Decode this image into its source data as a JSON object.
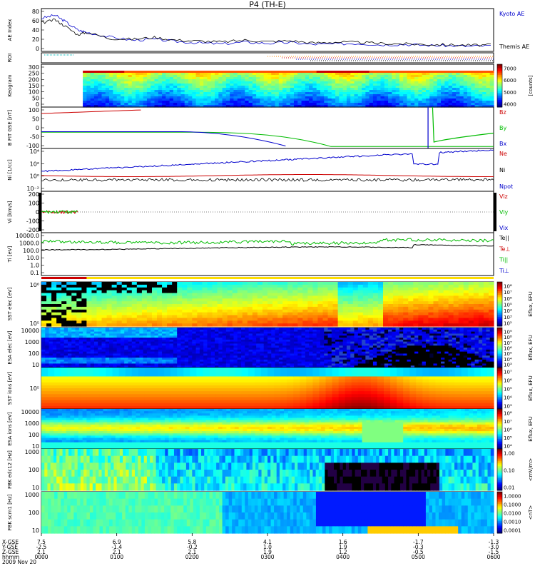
{
  "title": "P4 (TH-E)",
  "date_label": "2009 Nov 20",
  "colors": {
    "blue": "#0000cc",
    "red": "#cc0000",
    "green": "#00bb00",
    "black": "#000000",
    "cyan": "#00bbbb"
  },
  "chart_data": [
    {
      "type": "line",
      "panel": "ae",
      "ylabel": "AE Index",
      "y_ticks": [
        "80",
        "60",
        "40",
        "20",
        "0"
      ],
      "legend": [
        {
          "text": "Kyoto AE",
          "color": "#0000cc"
        },
        {
          "text": "Themis AE",
          "color": "#000000"
        }
      ],
      "series": [
        {
          "name": "Kyoto AE",
          "x": [
            0,
            0.03,
            0.05,
            0.08,
            0.1,
            0.15,
            0.2,
            0.25,
            0.3,
            0.35,
            0.4,
            0.45,
            0.5,
            0.55,
            0.6,
            0.65,
            0.7,
            0.75,
            0.8,
            0.85,
            0.9,
            0.95,
            1.0
          ],
          "values": [
            65,
            72,
            60,
            40,
            35,
            25,
            18,
            20,
            15,
            12,
            10,
            14,
            11,
            13,
            9,
            10,
            11,
            8,
            9,
            7,
            6,
            5,
            6
          ]
        },
        {
          "name": "Themis AE",
          "x": [
            0,
            0.03,
            0.05,
            0.08,
            0.1,
            0.15,
            0.2,
            0.25,
            0.3,
            0.35,
            0.4,
            0.45,
            0.5,
            0.55,
            0.6,
            0.65,
            0.7,
            0.75,
            0.8,
            0.85,
            0.9,
            0.95,
            1.0
          ],
          "values": [
            55,
            62,
            50,
            30,
            35,
            22,
            20,
            24,
            18,
            16,
            14,
            18,
            15,
            17,
            12,
            14,
            13,
            11,
            10,
            9,
            8,
            7,
            8
          ]
        }
      ]
    },
    {
      "type": "line",
      "panel": "roi",
      "ylabel": "ROI"
    },
    {
      "type": "heatmap",
      "panel": "keogram",
      "ylabel": "Keogram",
      "y_ticks": [
        "300",
        "250",
        "200",
        "150",
        "100",
        "50",
        "0"
      ],
      "colorbar_label": "[counts]",
      "colorbar_ticks": [
        "7000",
        "6000",
        "5000",
        "4000"
      ]
    },
    {
      "type": "line",
      "panel": "bfield",
      "ylabel": "B FIT GSE [nT]",
      "y_ticks": [
        "100",
        "50",
        "0",
        "-50",
        "-100"
      ],
      "legend": [
        {
          "text": "Bz",
          "color": "#cc0000"
        },
        {
          "text": "By",
          "color": "#00bb00"
        },
        {
          "text": "Bx",
          "color": "#0000cc"
        }
      ]
    },
    {
      "type": "line",
      "panel": "density",
      "ylabel": "Ni [1/cc]",
      "y_ticks": [
        "10⁴",
        "10²",
        "10⁰",
        "10⁻²"
      ],
      "legend": [
        {
          "text": "Ne",
          "color": "#cc0000"
        },
        {
          "text": "Ni",
          "color": "#000000"
        },
        {
          "text": "Npot",
          "color": "#0000cc"
        }
      ]
    },
    {
      "type": "line",
      "panel": "velocity",
      "ylabel": "Vi [km/s]",
      "y_ticks": [
        "200",
        "100",
        "0",
        "-100",
        "-200"
      ],
      "legend": [
        {
          "text": "Viz",
          "color": "#cc0000"
        },
        {
          "text": "Viy",
          "color": "#00bb00"
        },
        {
          "text": "Vix",
          "color": "#0000cc"
        }
      ]
    },
    {
      "type": "line",
      "panel": "temperature",
      "ylabel": "Ti [eV]",
      "y_ticks": [
        "10000.0",
        "1000.0",
        "100.0",
        "10.0",
        "1.0",
        "0.1"
      ],
      "legend": [
        {
          "text": "Te||",
          "color": "#000000"
        },
        {
          "text": "Te⊥",
          "color": "#cc0000"
        },
        {
          "text": "Ti||",
          "color": "#00bb00"
        },
        {
          "text": "Ti⊥",
          "color": "#0000cc"
        }
      ]
    },
    {
      "type": "heatmap",
      "panel": "sst_e",
      "ylabel": "SST elec [eV]",
      "y_ticks": [
        "10⁶",
        "10⁵"
      ],
      "colorbar_label": "Eflux, EFU",
      "colorbar_ticks": [
        "10⁸",
        "10⁷",
        "10⁶",
        "10⁵",
        "10⁴",
        "10³",
        "10²"
      ]
    },
    {
      "type": "heatmap",
      "panel": "esa_e",
      "ylabel": "ESA elec [eV]",
      "y_ticks": [
        "10000",
        "1000",
        "100",
        "10"
      ],
      "colorbar_label": "Eflux, EFU",
      "colorbar_ticks": [
        "10⁹",
        "10⁸",
        "10⁷",
        "10⁶",
        "10⁵",
        "10⁴",
        "10³"
      ]
    },
    {
      "type": "heatmap",
      "panel": "sst_i",
      "ylabel": "SST ions [eV]",
      "y_ticks": [
        "10⁵"
      ],
      "colorbar_label": "Eflux, EFU",
      "colorbar_ticks": [
        "10⁷",
        "10⁶",
        "10⁵",
        "10⁴",
        "10³"
      ]
    },
    {
      "type": "heatmap",
      "panel": "esa_i",
      "ylabel": "ESA ions [eV]",
      "y_ticks": [
        "10000",
        "1000",
        "100",
        "10"
      ],
      "colorbar_label": "Eflux, EFU",
      "colorbar_ticks": [
        "10⁸",
        "10⁷",
        "10⁶",
        "10⁵",
        "10⁴"
      ]
    },
    {
      "type": "heatmap",
      "panel": "fbk_e",
      "ylabel": "FBK edc12 [Hz]",
      "y_ticks": [
        "1000",
        "100",
        "10"
      ],
      "colorbar_label": "<mV/m>",
      "colorbar_ticks": [
        "1.00",
        "0.10",
        "0.01"
      ]
    },
    {
      "type": "heatmap",
      "panel": "fbk_b",
      "ylabel": "FBK scm1 [Hz]",
      "y_ticks": [
        "1000",
        "100",
        "10"
      ],
      "colorbar_label": "<nT>",
      "colorbar_ticks": [
        "1.0000",
        "0.1000",
        "0.0100",
        "0.0010",
        "0.0001"
      ]
    }
  ],
  "footer": {
    "row_labels": [
      "X-GSE",
      "Y-GSE",
      "Z-GSE",
      "hhmm"
    ],
    "columns": [
      {
        "x": "7.5",
        "y": "-2.5",
        "z": "2.1",
        "t": "0000"
      },
      {
        "x": "6.9",
        "y": "-1.4",
        "z": "2.1",
        "t": "0100"
      },
      {
        "x": "5.8",
        "y": "-0.2",
        "z": "2.1",
        "t": "0200"
      },
      {
        "x": "4.1",
        "y": "1.0",
        "z": "1.9",
        "t": "0300"
      },
      {
        "x": "1.6",
        "y": "1.9",
        "z": "1.2",
        "t": "0400"
      },
      {
        "x": "-1.7",
        "y": "-0.3",
        "z": "-0.5",
        "t": "0500"
      },
      {
        "x": "-1.3",
        "y": "-3.0",
        "z": "-1.5",
        "t": "0600"
      }
    ]
  }
}
